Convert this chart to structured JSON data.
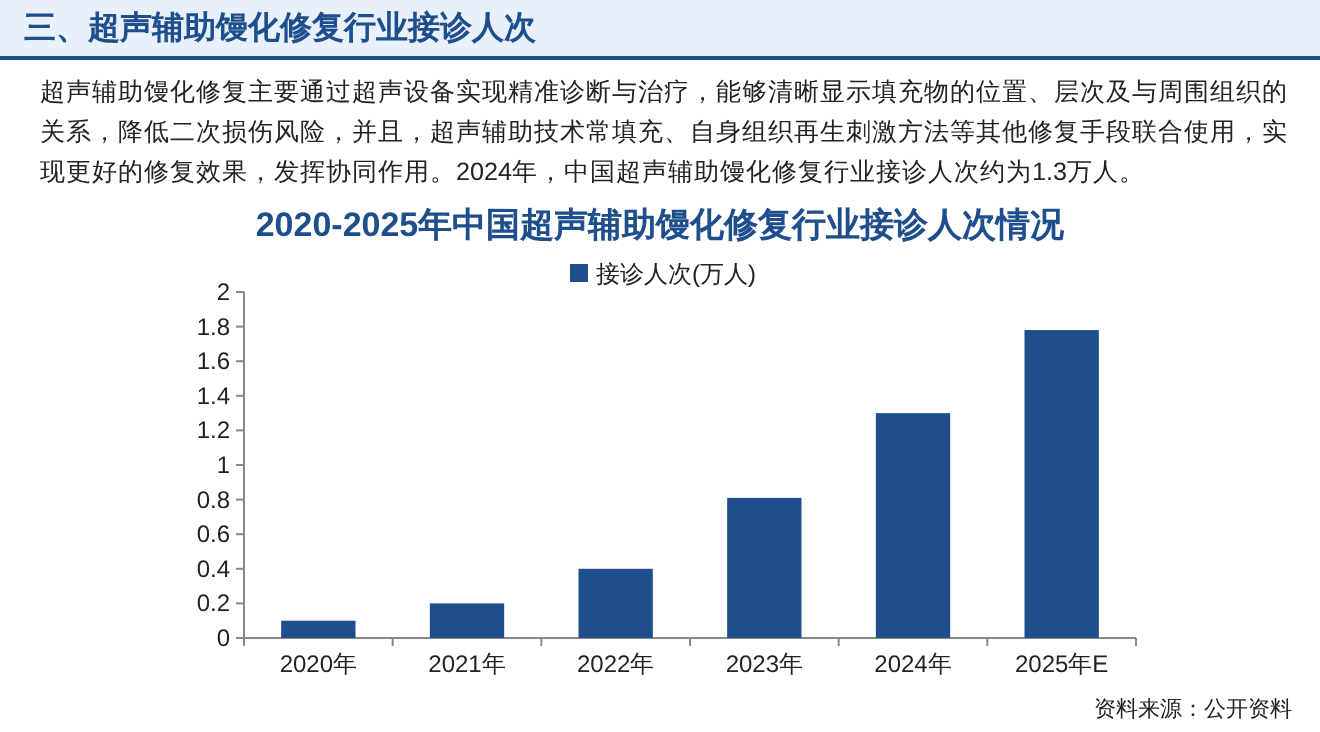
{
  "chart_data": {
    "type": "bar",
    "title": "2020-2025年中国超声辅助馒化修复行业接诊人次情况",
    "categories": [
      "2020年",
      "2021年",
      "2022年",
      "2023年",
      "2024年",
      "2025年E"
    ],
    "series": [
      {
        "name": "接诊人次(万人)",
        "color": "#1f4e8c",
        "values": [
          0.1,
          0.2,
          0.4,
          0.81,
          1.3,
          1.78
        ]
      }
    ],
    "ylim": [
      0,
      2
    ],
    "yticks": [
      0,
      0.2,
      0.4,
      0.6,
      0.8,
      1,
      1.2,
      1.4,
      1.6,
      1.8,
      2
    ],
    "grid": false,
    "legend": "top",
    "annotations": [
      "三、超声辅助馒化修复行业接诊人次",
      "超声辅助馒化修复主要通过超声设备实现精准诊断与治疗，能够清晰显示填充物的位置、层次及与周围组织的关系，降低二次损伤风险，并且，超声辅助技术常填充、自身组织再生刺激方法等其他修复手段联合使用，实现更好的修复效果，发挥协同作用。2024年，中国超声辅助馒化修复行业接诊人次约为1.3万人。",
      "资料来源：公开资料"
    ]
  }
}
